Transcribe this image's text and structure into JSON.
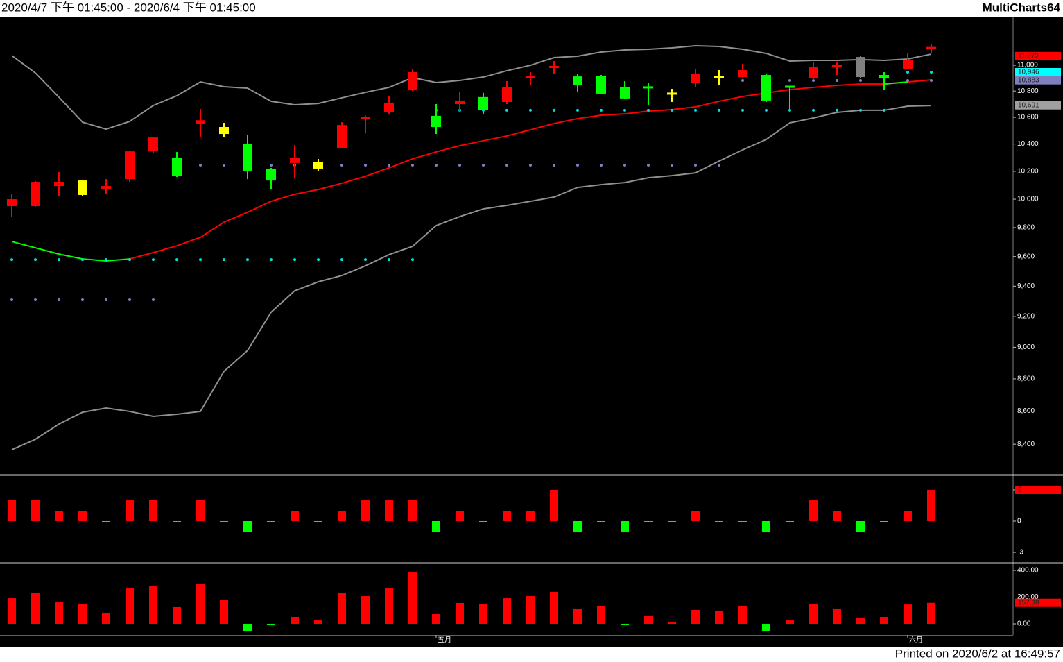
{
  "header": {
    "range": "2020/4/7 下午 01:45:00 - 2020/6/4 下午 01:45:00",
    "app": "MultiCharts64"
  },
  "footer": {
    "printed": "Printed on 2020/6/2 at 16:49:57"
  },
  "chart_data": [
    {
      "type": "candlestick",
      "log_scale": true,
      "ylim": [
        8224,
        11387
      ],
      "yticks": [
        {
          "value": 8400,
          "label": "8,400"
        },
        {
          "value": 8600,
          "label": "8,600"
        },
        {
          "value": 8800,
          "label": "8,800"
        },
        {
          "value": 9000,
          "label": "9,000"
        },
        {
          "value": 9200,
          "label": "9,200"
        },
        {
          "value": 9400,
          "label": "9,400"
        },
        {
          "value": 9600,
          "label": "9,600"
        },
        {
          "value": 9800,
          "label": "9,800"
        },
        {
          "value": 10000,
          "label": "10,000"
        },
        {
          "value": 10200,
          "label": "10,200"
        },
        {
          "value": 10400,
          "label": "10,400"
        },
        {
          "value": 10600,
          "label": "10,600"
        },
        {
          "value": 10800,
          "label": "10,800"
        },
        {
          "value": 11000,
          "label": "11,000"
        }
      ],
      "open": [
        9951,
        9951,
        10094,
        10134,
        10075,
        10144,
        10346,
        10296,
        10553,
        10527,
        10398,
        10220,
        10261,
        10270,
        10372,
        10588,
        10642,
        10806,
        10611,
        10700,
        10754,
        10716,
        10892,
        10978,
        10913,
        10919,
        10833,
        10828,
        10780,
        10860,
        10908,
        10908,
        10924,
        10833,
        10897,
        10984,
        10908,
        10924,
        10973,
        11120
      ],
      "high": [
        10035,
        10130,
        10195,
        10140,
        10144,
        10350,
        10455,
        10341,
        10663,
        10558,
        10465,
        10225,
        10393,
        10291,
        10563,
        10614,
        10764,
        10973,
        10700,
        10796,
        10786,
        10876,
        10946,
        11033,
        10935,
        10924,
        10876,
        10860,
        10817,
        10967,
        10962,
        11011,
        10935,
        10838,
        11022,
        11027,
        11076,
        10946,
        11098,
        11163
      ],
      "low": [
        9877,
        9946,
        10025,
        10025,
        10035,
        10124,
        10336,
        10159,
        10454,
        10454,
        10144,
        10069,
        10149,
        10205,
        10367,
        10480,
        10621,
        10800,
        10475,
        10647,
        10621,
        10700,
        10849,
        10935,
        10796,
        10775,
        10737,
        10695,
        10716,
        10833,
        10849,
        10903,
        10716,
        10647,
        10887,
        10924,
        10897,
        10806,
        10973,
        11092
      ],
      "close": [
        10000,
        10124,
        10124,
        10030,
        10094,
        10346,
        10449,
        10169,
        10578,
        10475,
        10205,
        10134,
        10296,
        10220,
        10542,
        10604,
        10711,
        10946,
        10527,
        10727,
        10658,
        10833,
        10908,
        10995,
        10849,
        10780,
        10743,
        10812,
        10775,
        10935,
        10903,
        10962,
        10727,
        10822,
        10989,
        10995,
        11065,
        10897,
        11044,
        11136
      ],
      "candle_colors": [
        "#ff0000",
        "#ff0000",
        "#ff0000",
        "#ffff00",
        "#ff0000",
        "#ff0000",
        "#ff0000",
        "#00ff00",
        "#ff0000",
        "#ffff00",
        "#00ff00",
        "#00ff00",
        "#ff0000",
        "#ffff00",
        "#ff0000",
        "#ff0000",
        "#ff0000",
        "#ff0000",
        "#00ff00",
        "#ff0000",
        "#00ff00",
        "#ff0000",
        "#ff0000",
        "#ff0000",
        "#00ff00",
        "#00ff00",
        "#00ff00",
        "#00ff00",
        "#ffff00",
        "#ff0000",
        "#ffff00",
        "#ff0000",
        "#00ff00",
        "#00ff00",
        "#ff0000",
        "#ff0000",
        "#808080",
        "#00ff00",
        "#ff0000",
        "#ff0000"
      ],
      "overlays": [
        {
          "color": "#909090",
          "values": [
            11076,
            10940,
            10753,
            10563,
            10511,
            10569,
            10689,
            10764,
            10870,
            10833,
            10822,
            10721,
            10695,
            10705,
            10748,
            10790,
            10828,
            10903,
            10865,
            10881,
            10908,
            10957,
            11000,
            11060,
            11071,
            11104,
            11120,
            11126,
            11137,
            11153,
            11148,
            11126,
            11093,
            11033,
            11038,
            11038,
            11044,
            11038,
            11049,
            11087
          ]
        },
        {
          "color": "#909090",
          "values": [
            8367,
            8429,
            8521,
            8593,
            8619,
            8598,
            8568,
            8581,
            8598,
            8847,
            8979,
            9227,
            9369,
            9429,
            9471,
            9537,
            9613,
            9670,
            9814,
            9877,
            9931,
            9956,
            9985,
            10015,
            10084,
            10104,
            10119,
            10154,
            10169,
            10189,
            10275,
            10357,
            10434,
            10558,
            10595,
            10637,
            10653,
            10653,
            10684,
            10689
          ]
        },
        {
          "color": "#ff0000",
          "values": [
            null,
            null,
            null,
            null,
            null,
            9584,
            9627,
            9674,
            9732,
            9838,
            9907,
            9985,
            10035,
            10069,
            10114,
            10164,
            10225,
            10291,
            10342,
            10388,
            10424,
            10460,
            10506,
            10553,
            10590,
            10616,
            10626,
            10647,
            10658,
            10679,
            10721,
            10758,
            10785,
            10811,
            10828,
            10844,
            10854,
            10854,
            10870,
            10886
          ]
        },
        {
          "color": "#00ff00",
          "values": [
            9703,
            9660,
            9617,
            9584,
            9570,
            9584,
            null,
            null,
            null,
            null,
            null,
            null,
            null,
            null,
            null,
            null,
            null,
            null,
            null,
            null,
            null,
            null,
            null,
            null,
            null,
            null,
            null,
            null,
            null,
            null,
            null,
            null,
            null,
            null,
            null,
            null,
            null,
            10854,
            10870,
            null
          ]
        }
      ],
      "dots": [
        {
          "color": "#00e0e0",
          "values": [
            9579,
            9579,
            9579,
            9579,
            9579,
            9579,
            9579,
            9579,
            9579,
            9579,
            9579,
            9579,
            9579,
            9579,
            9579,
            9579,
            9579,
            9579,
            10653,
            10653,
            10653,
            10653,
            10653,
            10653,
            10653,
            10653,
            10653,
            10653,
            10653,
            10653,
            10653,
            10653,
            10653,
            10653,
            10653,
            10653,
            10653,
            10653,
            10946,
            10946
          ]
        },
        {
          "color": "#8080c0",
          "values": [
            9309,
            9309,
            9309,
            9309,
            9309,
            9309,
            9309,
            10245,
            10245,
            10245,
            10245,
            10245,
            10245,
            10245,
            10245,
            10245,
            10245,
            10245,
            10245,
            10245,
            10245,
            10245,
            10245,
            10245,
            10245,
            10245,
            10245,
            10245,
            10245,
            10245,
            10245,
            10881,
            10881,
            10881,
            10881,
            10881,
            10881,
            10881,
            10881,
            10881
          ]
        }
      ],
      "markers": [
        {
          "value": 11072,
          "label": "11,072",
          "color": "#ff0000"
        },
        {
          "value": 10946,
          "label": "10,946",
          "color": "#00ffff"
        },
        {
          "value": 10883,
          "label": "10,883",
          "color": "#8080c0"
        },
        {
          "value": 10691,
          "label": "10,691",
          "color": "#a0a0a0"
        }
      ]
    },
    {
      "type": "bar",
      "ylim": [
        -3.93,
        4.33
      ],
      "yticks": [
        -3,
        0,
        3
      ],
      "up_color": "#ff0000",
      "down_color": "#00ff00",
      "values": [
        2,
        2,
        1,
        1,
        0,
        2,
        2,
        0,
        2,
        0,
        -1,
        0,
        1,
        0,
        1,
        2,
        2,
        2,
        -1,
        1,
        0,
        1,
        1,
        3,
        -1,
        0,
        -1,
        0,
        0,
        1,
        0,
        0,
        -1,
        0,
        2,
        1,
        -1,
        0,
        1,
        3
      ],
      "markers": [
        {
          "value": 3,
          "label": "3",
          "color": "#ff0000"
        }
      ]
    },
    {
      "type": "bar",
      "ylim": [
        -83,
        446.8
      ],
      "yticks": [
        {
          "value": 0,
          "label": "0.00"
        },
        {
          "value": 200,
          "label": "200.00"
        },
        {
          "value": 400,
          "label": "400.00"
        }
      ],
      "up_color": "#ff0000",
      "down_color": "#00ff00",
      "values": [
        192,
        234,
        161,
        151,
        78,
        265,
        286,
        125,
        296,
        182,
        -52,
        -5,
        52,
        26,
        229,
        208,
        265,
        390,
        73,
        156,
        151,
        192,
        208,
        239,
        114,
        135,
        -3,
        62,
        16,
        104,
        99,
        130,
        -52,
        26,
        151,
        114,
        47,
        52,
        145,
        157.38
      ],
      "markers": [
        {
          "value": 157.38,
          "label": "157.38",
          "color": "#ff0000"
        }
      ],
      "categories": [
        null,
        null,
        null,
        null,
        null,
        null,
        null,
        null,
        null,
        null,
        null,
        null,
        null,
        null,
        null,
        null,
        null,
        null,
        "五月",
        null,
        null,
        null,
        null,
        null,
        null,
        null,
        null,
        null,
        null,
        null,
        null,
        null,
        null,
        null,
        null,
        null,
        null,
        null,
        "六月",
        null
      ]
    }
  ]
}
